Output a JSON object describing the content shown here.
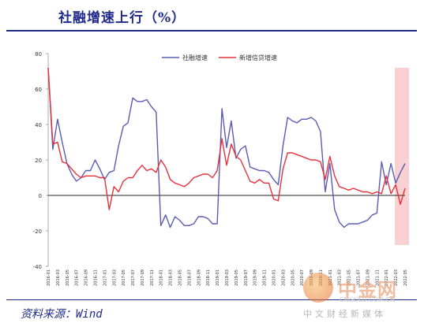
{
  "title": "社融增速上行（%）",
  "source": "资料来源：Wind",
  "watermark": {
    "name": "中金网",
    "url": "CNGOLD.COM.CN",
    "slogan": "中文财经新媒体"
  },
  "colors": {
    "title": "#1f2a8a",
    "series_1": "#5b5bb5",
    "series_2": "#e8303a",
    "highlight": "#f7c6c8"
  },
  "chart_data": {
    "type": "line",
    "title": "",
    "xlabel": "",
    "ylabel": "",
    "ylim": [
      -40,
      80
    ],
    "yticks": [
      -40,
      -20,
      0,
      20,
      40,
      60,
      80
    ],
    "grid": false,
    "legend": "top-center",
    "x": [
      "2016-01",
      "2016-02",
      "2016-03",
      "2016-04",
      "2016-05",
      "2016-06",
      "2016-07",
      "2016-08",
      "2016-09",
      "2016-10",
      "2016-11",
      "2016-12",
      "2017-01",
      "2017-02",
      "2017-03",
      "2017-04",
      "2017-05",
      "2017-06",
      "2017-07",
      "2017-08",
      "2017-09",
      "2017-10",
      "2017-11",
      "2017-12",
      "2018-01",
      "2018-02",
      "2018-03",
      "2018-04",
      "2018-05",
      "2018-06",
      "2018-07",
      "2018-08",
      "2018-09",
      "2018-10",
      "2018-11",
      "2018-12",
      "2019-01",
      "2019-02",
      "2019-03",
      "2019-04",
      "2019-05",
      "2019-06",
      "2019-07",
      "2019-08",
      "2019-09",
      "2019-10",
      "2019-11",
      "2019-12",
      "2020-01",
      "2020-02",
      "2020-03",
      "2020-04",
      "2020-05",
      "2020-06",
      "2020-07",
      "2020-08",
      "2020-09",
      "2020-10",
      "2020-11",
      "2020-12",
      "2021-01",
      "2021-02",
      "2021-03",
      "2021-04",
      "2021-05",
      "2021-06",
      "2021-07",
      "2021-08",
      "2021-09",
      "2021-10",
      "2021-11",
      "2021-12",
      "2022-01",
      "2022-02",
      "2022-03",
      "2022-04",
      "2022-05"
    ],
    "xtick_labels": [
      "2016-01",
      "2016-03",
      "2016-05",
      "2016-07",
      "2016-09",
      "2016-11",
      "2017-01",
      "2017-03",
      "2017-05",
      "2017-07",
      "2017-09",
      "2017-11",
      "2018-01",
      "2018-03",
      "2018-05",
      "2018-07",
      "2018-09",
      "2018-11",
      "2019-01",
      "2019-03",
      "2019-05",
      "2019-07",
      "2019-09",
      "2019-11",
      "2020-01",
      "2020-03",
      "2020-05",
      "2020-07",
      "2020-09",
      "2020-11",
      "2021-01",
      "2021-03",
      "2021-05",
      "2021-07",
      "2021-09",
      "2021-11",
      "2022-01",
      "2022-03",
      "2022-05"
    ],
    "highlight_range": [
      "2022-03",
      "2022-05"
    ],
    "series": [
      {
        "name": "社融增速",
        "values": [
          72,
          26,
          43,
          30,
          18,
          12,
          8,
          10,
          14,
          14,
          20,
          15,
          9,
          13,
          14,
          28,
          39,
          41,
          55,
          53,
          53,
          54,
          50,
          47,
          -17,
          -11,
          -18,
          -12,
          -14,
          -17,
          -17,
          -16,
          -12,
          -12,
          -13,
          -16,
          -16,
          49,
          27,
          42,
          21,
          26,
          28,
          16,
          15,
          14,
          14,
          13,
          9,
          6,
          28,
          44,
          42,
          41,
          43,
          43,
          44,
          42,
          36,
          2,
          18,
          -8,
          -15,
          -18,
          -16,
          -16,
          -16,
          -15,
          -14,
          -11,
          -10,
          19,
          6,
          18,
          7,
          13,
          18
        ]
      },
      {
        "name": "新增信贷增速",
        "values": [
          72,
          29,
          30,
          19,
          18,
          15,
          12,
          10,
          11,
          11,
          11,
          10,
          10,
          -8,
          5,
          2,
          8,
          10,
          10,
          14,
          17,
          14,
          15,
          13,
          20,
          16,
          9,
          7,
          6,
          5,
          7,
          10,
          11,
          12,
          12,
          10,
          14,
          32,
          17,
          29,
          22,
          20,
          14,
          8,
          7,
          9,
          7,
          7,
          -2,
          -3,
          15,
          24,
          24,
          23,
          22,
          21,
          20,
          20,
          19,
          9,
          22,
          11,
          5,
          4,
          3,
          4,
          3,
          2,
          2,
          1,
          2,
          1,
          11,
          1,
          6,
          -5,
          4
        ]
      }
    ]
  }
}
